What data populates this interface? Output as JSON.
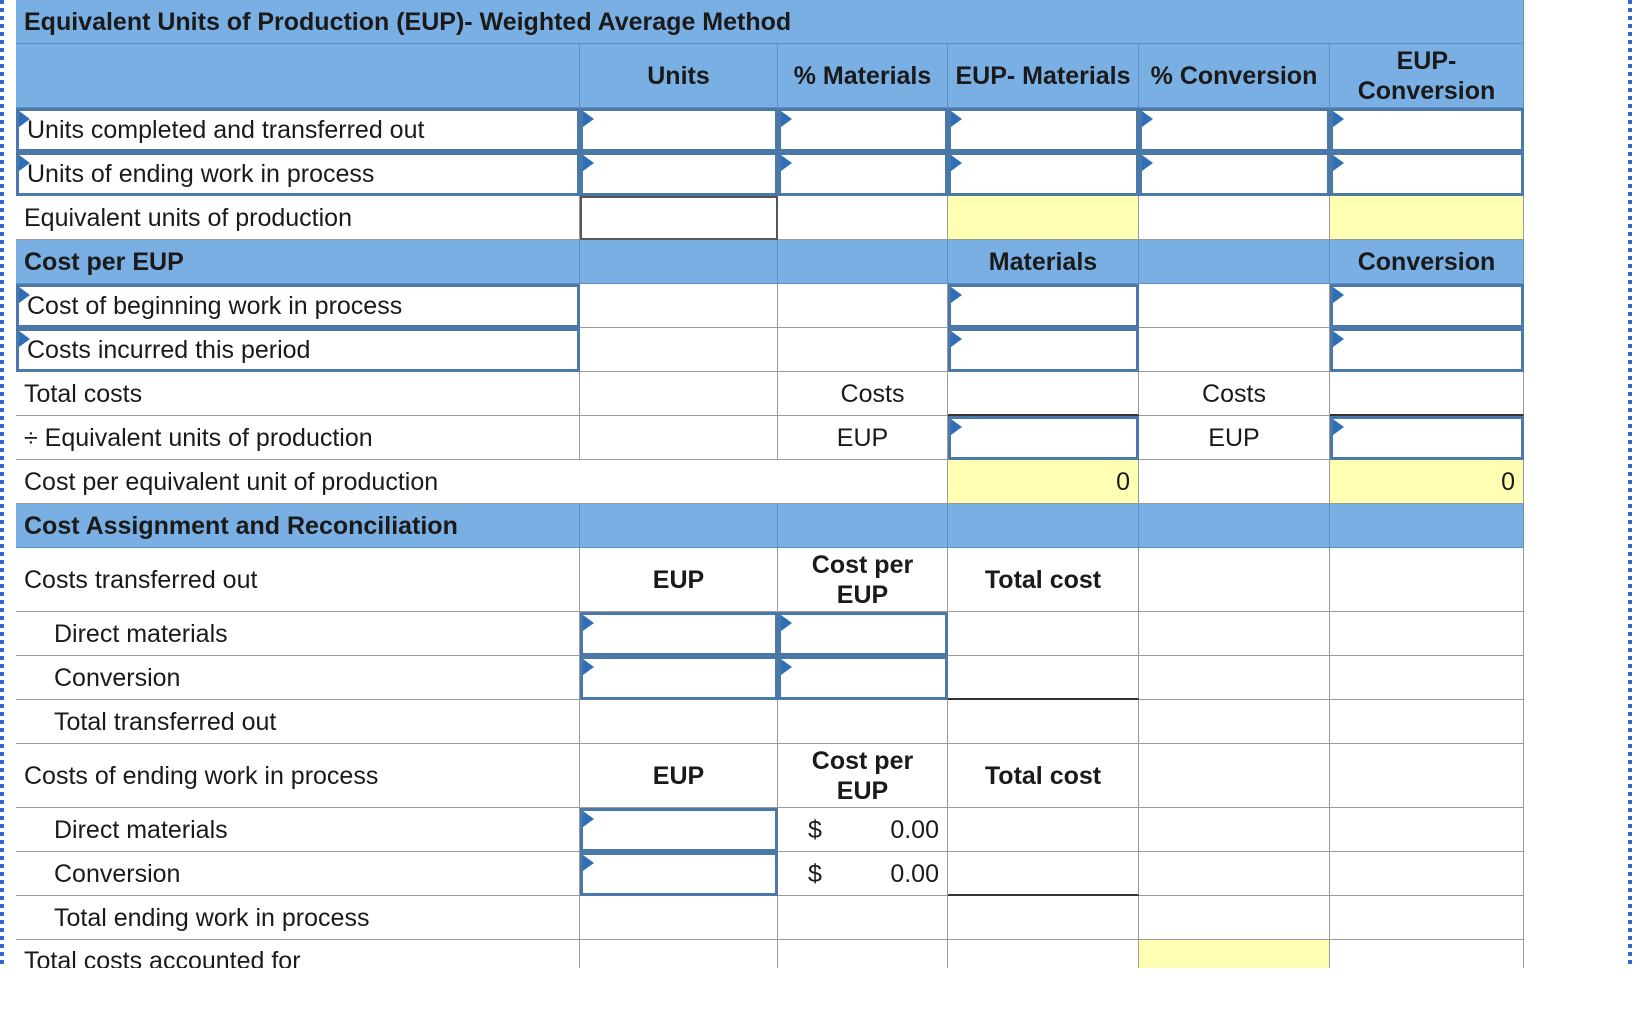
{
  "title": "Equivalent Units of Production (EUP)- Weighted Average Method",
  "headers": {
    "units": "Units",
    "pct_materials": "% Materials",
    "eup_materials": "EUP- Materials",
    "pct_conversion": "% Conversion",
    "eup_conversion": "EUP- Conversion"
  },
  "eup_rows": {
    "completed": "Units completed and transferred out",
    "ending_wip": "Units of ending work in process",
    "total_eup": "Equivalent units of production"
  },
  "cost_per_eup": {
    "heading": "Cost per EUP",
    "materials": "Materials",
    "conversion": "Conversion",
    "beginning_wip": "Cost of beginning work in process",
    "incurred": "Costs incurred this period",
    "total_costs": "Total costs",
    "divide_eup": "÷ Equivalent units of production",
    "cost_per_unit": "Cost per equivalent unit of production",
    "costs_word": "Costs",
    "eup_word": "EUP",
    "materials_value": "0",
    "conversion_value": "0"
  },
  "assignment": {
    "heading": "Cost Assignment and Reconciliation",
    "transferred_out": "Costs transferred out",
    "eup_col": "EUP",
    "cost_per_eup_col": "Cost per EUP",
    "total_cost_col": "Total cost",
    "direct_materials": "Direct materials",
    "conversion": "Conversion",
    "total_transferred": "Total transferred out",
    "ending_wip": "Costs of ending work in process",
    "dollar_sign": "$",
    "dm_ending_cost": "0.00",
    "conv_ending_cost": "0.00",
    "total_ending": "Total ending work in process",
    "total_accounted": "Total costs accounted for"
  }
}
